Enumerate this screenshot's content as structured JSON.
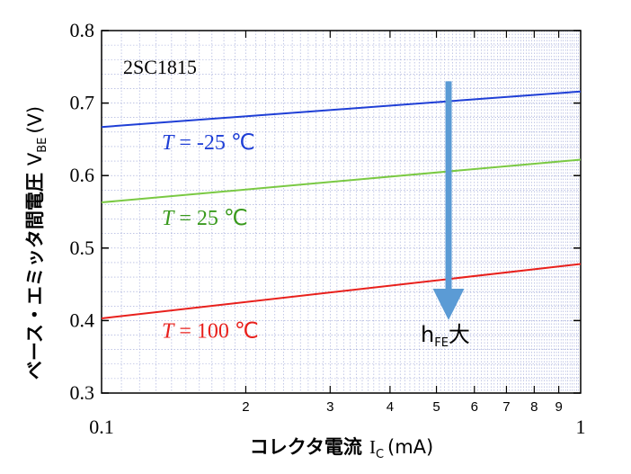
{
  "chart_data": {
    "type": "line",
    "x_scale": "log",
    "xlim": [
      0.1,
      1
    ],
    "ylim": [
      0.3,
      0.8
    ],
    "x_major_ticks": [
      0.1,
      1
    ],
    "x_major_tick_labels": [
      "0.1",
      "1"
    ],
    "x_minor_ticks": [
      0.2,
      0.3,
      0.4,
      0.5,
      0.6,
      0.7,
      0.8,
      0.9
    ],
    "x_minor_tick_labels": [
      "2",
      "3",
      "4",
      "5",
      "6",
      "7",
      "8",
      "9"
    ],
    "y_ticks": [
      0.3,
      0.4,
      0.5,
      0.6,
      0.7,
      0.8
    ],
    "y_tick_labels": [
      "0.3",
      "0.4",
      "0.5",
      "0.6",
      "0.7",
      "0.8"
    ],
    "grid": true,
    "xlabel": "コレクタ電流 IC (mA)",
    "ylabel": "ベース・エミッタ間電圧 VBE (V)",
    "annotation": "2SC1815",
    "series": [
      {
        "name": "T = -25 ℃",
        "color": "#1f3fd6",
        "x": [
          0.1,
          1
        ],
        "y": [
          0.667,
          0.716
        ]
      },
      {
        "name": "T = 25 ℃",
        "color": "#7ac943",
        "x": [
          0.1,
          1
        ],
        "y": [
          0.563,
          0.622
        ]
      },
      {
        "name": "T = 100 ℃",
        "color": "#e8201c",
        "x": [
          0.1,
          1
        ],
        "y": [
          0.403,
          0.478
        ]
      }
    ],
    "arrow": {
      "label": "hFE大",
      "color": "#5b9bd5",
      "x": 0.53,
      "y_from": 0.73,
      "y_to": 0.405
    }
  },
  "labels": {
    "xlabel_main": "コレクタ電流",
    "xlabel_sym": "I",
    "xlabel_sub": "C",
    "xlabel_unit": "(mA)",
    "ylabel_main": "ベース・エミッタ間電圧",
    "ylabel_sym": "V",
    "ylabel_sub": "BE",
    "ylabel_unit": "(V)",
    "part": "2SC1815",
    "hfe_main": "h",
    "hfe_sub": "FE",
    "hfe_suffix": "大",
    "series_T": "T",
    "series_rest": [
      " = -25 ℃",
      " = 25 ℃",
      " = 100 ℃"
    ]
  }
}
